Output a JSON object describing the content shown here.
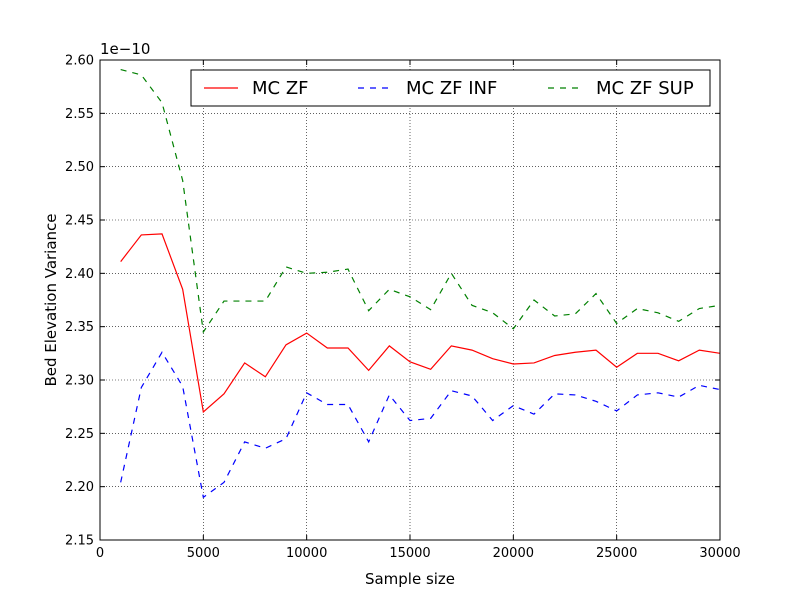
{
  "chart_data": {
    "type": "line",
    "xlabel": "Sample size",
    "ylabel": "Bed Elevation Variance",
    "offset_text": "1e−10",
    "xlim": [
      0,
      30000
    ],
    "ylim": [
      2.15,
      2.6
    ],
    "xticks": [
      0,
      5000,
      10000,
      15000,
      20000,
      25000,
      30000
    ],
    "yticks": [
      2.15,
      2.2,
      2.25,
      2.3,
      2.35,
      2.4,
      2.45,
      2.5,
      2.55,
      2.6
    ],
    "grid": true,
    "legend_placement": "top-right",
    "x": [
      1000,
      2000,
      3000,
      4000,
      5000,
      6000,
      7000,
      8000,
      9000,
      10000,
      11000,
      12000,
      13000,
      14000,
      15000,
      16000,
      17000,
      18000,
      19000,
      20000,
      21000,
      22000,
      23000,
      24000,
      25000,
      26000,
      27000,
      28000,
      29000,
      30000
    ],
    "series": [
      {
        "name": "MC ZF",
        "color": "#ff0000",
        "dash": "solid",
        "values": [
          2.411,
          2.436,
          2.437,
          2.385,
          2.27,
          2.287,
          2.316,
          2.303,
          2.333,
          2.344,
          2.33,
          2.33,
          2.309,
          2.332,
          2.317,
          2.31,
          2.332,
          2.328,
          2.32,
          2.315,
          2.316,
          2.323,
          2.326,
          2.328,
          2.312,
          2.325,
          2.325,
          2.318,
          2.328,
          2.325
        ]
      },
      {
        "name": "MC ZF INF",
        "color": "#0000ff",
        "dash": "dashed",
        "values": [
          2.204,
          2.293,
          2.326,
          2.294,
          2.19,
          2.204,
          2.242,
          2.236,
          2.245,
          2.288,
          2.277,
          2.277,
          2.242,
          2.286,
          2.262,
          2.264,
          2.29,
          2.285,
          2.262,
          2.276,
          2.268,
          2.287,
          2.286,
          2.28,
          2.271,
          2.286,
          2.288,
          2.284,
          2.295,
          2.291
        ]
      },
      {
        "name": "MC ZF SUP",
        "color": "#008000",
        "dash": "dashed",
        "values": [
          2.591,
          2.586,
          2.56,
          2.487,
          2.345,
          2.374,
          2.374,
          2.374,
          2.406,
          2.4,
          2.401,
          2.404,
          2.365,
          2.385,
          2.378,
          2.366,
          2.4,
          2.37,
          2.363,
          2.348,
          2.375,
          2.36,
          2.362,
          2.381,
          2.353,
          2.367,
          2.363,
          2.355,
          2.367,
          2.37
        ]
      }
    ]
  }
}
